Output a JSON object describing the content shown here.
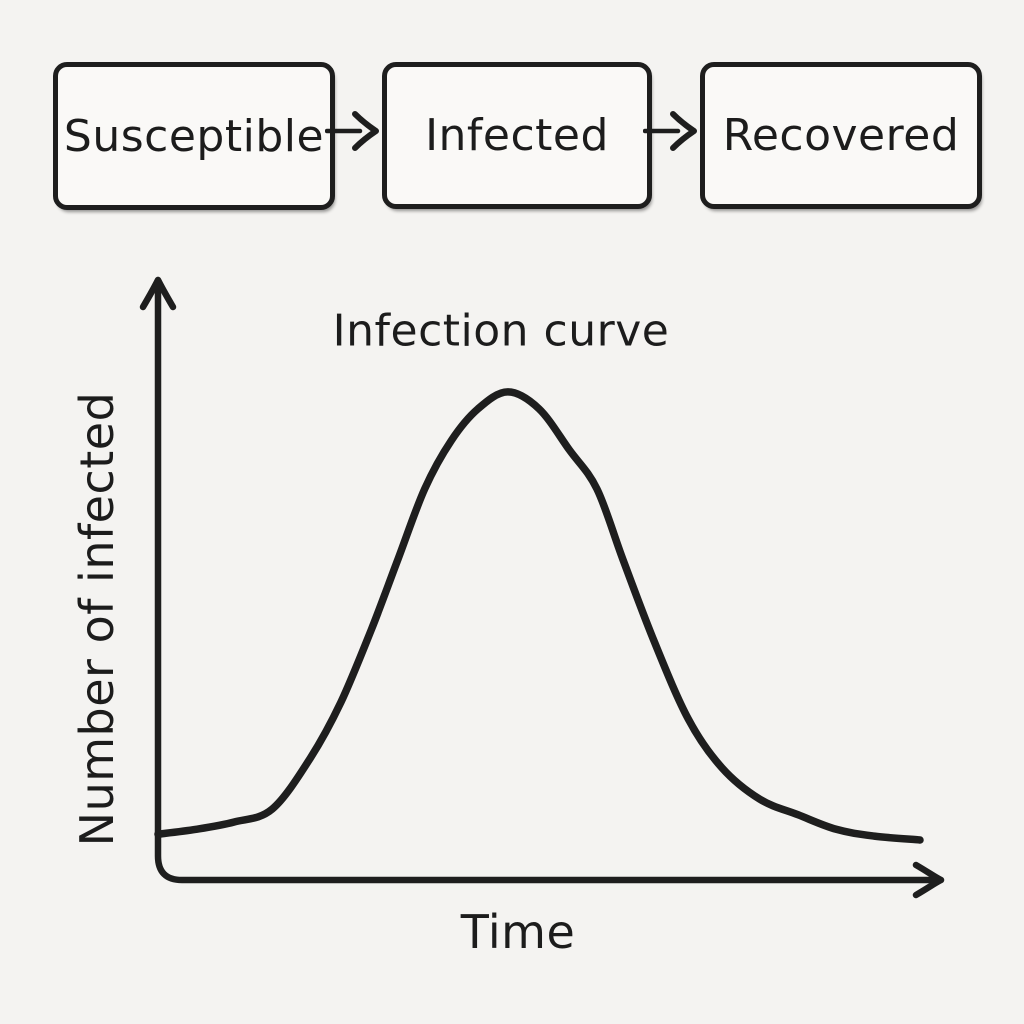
{
  "colors": {
    "background": "#f4f3f1",
    "ink": "#1e1e1e",
    "box_fill": "#faf9f7",
    "text": "#1c1c1c"
  },
  "flow_diagram": {
    "boxes": [
      {
        "label": "Susceptible"
      },
      {
        "label": "Infected"
      },
      {
        "label": "Recovered"
      }
    ],
    "arrows": [
      {
        "from": "Susceptible",
        "to": "Infected",
        "icon": "right-arrow"
      },
      {
        "from": "Infected",
        "to": "Recovered",
        "icon": "right-arrow"
      }
    ]
  },
  "chart_data": {
    "type": "line",
    "title": "Infection curve",
    "xlabel": "Time",
    "ylabel": "Number of infected",
    "xlim": [
      0,
      1
    ],
    "ylim": [
      0,
      1
    ],
    "grid": false,
    "ticks": "none",
    "legend": "none",
    "style": "hand-drawn sketch, single black bell-shaped curve, arrow-tipped axes, no tick labels",
    "series": [
      {
        "name": "Number of infected",
        "color": "#1e1e1e",
        "x": [
          0.0,
          0.05,
          0.1,
          0.15,
          0.2,
          0.24,
          0.28,
          0.315,
          0.35,
          0.385,
          0.42,
          0.459,
          0.5,
          0.54,
          0.576,
          0.61,
          0.65,
          0.696,
          0.74,
          0.79,
          0.84,
          0.89,
          0.94,
          1.0
        ],
        "y": [
          0.078,
          0.088,
          0.103,
          0.13,
          0.235,
          0.35,
          0.5,
          0.645,
          0.79,
          0.89,
          0.955,
          0.99,
          0.955,
          0.87,
          0.79,
          0.645,
          0.48,
          0.315,
          0.215,
          0.15,
          0.118,
          0.088,
          0.074,
          0.066
        ]
      }
    ]
  }
}
